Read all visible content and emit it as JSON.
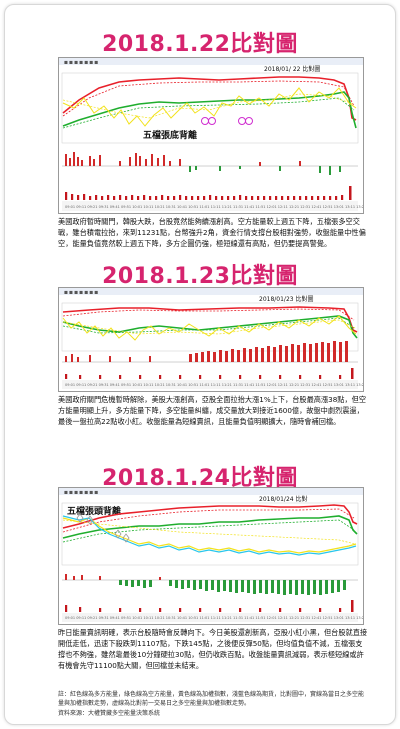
{
  "sections": [
    {
      "title": "2018.1.22比對圖",
      "chart_header": "2018/01/ 22  比對圖",
      "chart_annotation": "五檔張底背離",
      "paragraph": "美國政府暫時關門，韓股大跌，台股竟然能夠續漲創高。空方能量較上週五下降，五檔張多空交戰，雖台積電拉抬，來到11231點，台幣強升2角，資金行情支撐台股相對強勢，收盤能量中性偏空，能量負值竟然較上週五下降，多方企圖仍強，極短線還有高點，但仍要提高警覺。"
    },
    {
      "title": "2018.1.23比對圖",
      "chart_header": "2018/01/23  比對圖",
      "chart_annotation": "",
      "paragraph": "美國政府關門危機暫時解除，美股大漲創高，亞股全面拉抬大漲1%上下，台股最高漲38點，但空方能量明顯上升，多方能量下降，多空能量糾纏，成交量放大到接近1600億，故盤中劇烈震盪，最後一盤拉高22點收小紅。收盤能量為短線賣訊，且能量負值明顯擴大，隨時會補回檔。"
    },
    {
      "title": "2018.1.24比對圖",
      "chart_header": "2018/01/24  比對",
      "chart_annotation": "五檔張頭背離",
      "paragraph": "昨日能量賣訊明確，表示台股隨時會反轉向下。今日美股還創新高，亞股小紅小黑，但台股就直接開低走低，迅速下殺跌到11107點，下跌145點，之後便反彈50點，但均值負值不減，五檔張支撐也不夠強，雖然靠最後10分鐘硬拉30點，但仍收跌百點。收盤能量賣訊減弱，表示極短線或許有機會先守11100點大關，但回檔並未結束。"
    }
  ],
  "footnote": "註：紅色線為多方能量，綠色線為空方能量，黃色線為加權指數，淺藍色線為期貨，比對圖中，實線為當日之多空能量與加權指數走勢，虛線為比對前一交易日之多空能量與加權指數走勢。",
  "source": "資料來源：大權贊藏多空能量決策系統",
  "colors": {
    "title": "#d6246e",
    "bull_energy": "#e8202a",
    "bear_energy": "#1fae2e",
    "index": "#f2e21c",
    "futures": "#28c6ec"
  }
}
